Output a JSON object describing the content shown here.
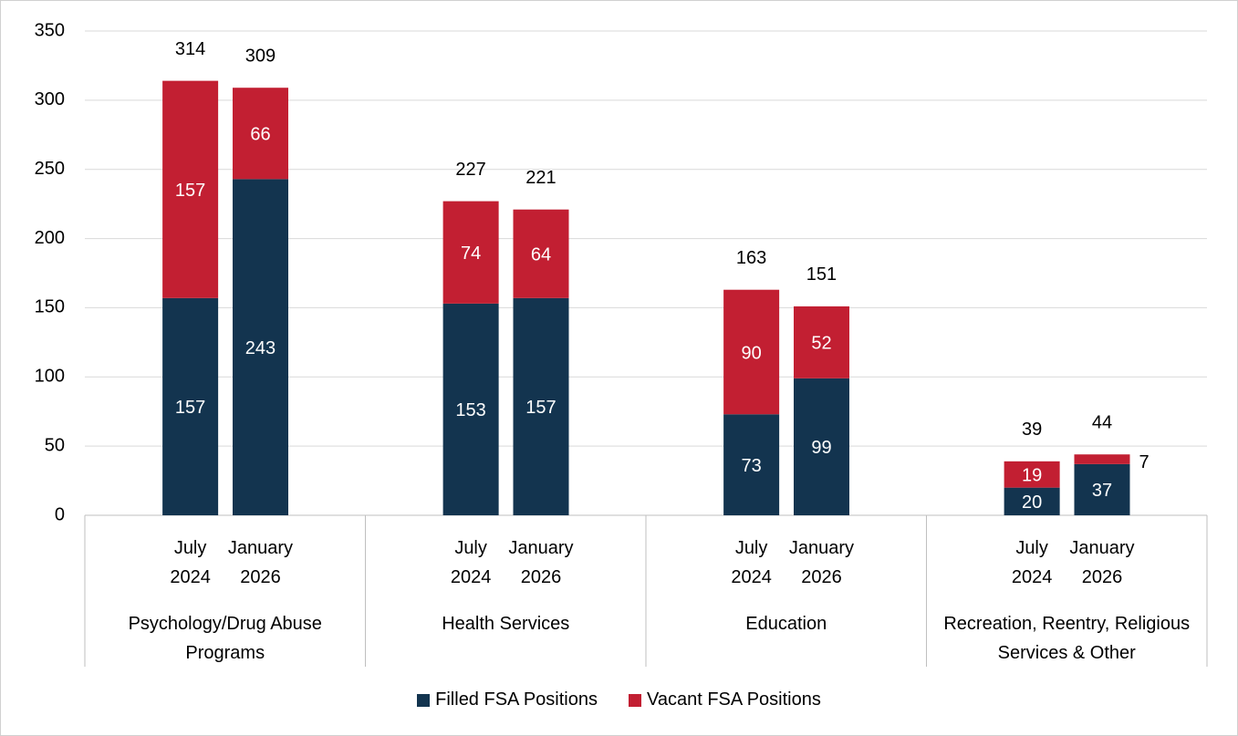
{
  "chart_data": {
    "type": "bar",
    "stacked": true,
    "groups": [
      "Psychology/Drug Abuse Programs",
      "Health Services",
      "Education",
      "Recreation, Reentry, Religious Services & Other"
    ],
    "categories": [
      "July 2024",
      "January 2026",
      "July 2024",
      "January 2026",
      "July 2024",
      "January 2026",
      "July 2024",
      "January 2026"
    ],
    "series": [
      {
        "name": "Filled FSA Positions",
        "color": "#13344f",
        "values": [
          157,
          243,
          153,
          157,
          73,
          99,
          20,
          37
        ]
      },
      {
        "name": "Vacant FSA Positions",
        "color": "#c21f32",
        "values": [
          157,
          66,
          74,
          64,
          90,
          52,
          19,
          7
        ]
      }
    ],
    "totals": [
      314,
      309,
      227,
      221,
      163,
      151,
      39,
      44
    ],
    "ylim": [
      0,
      350
    ],
    "yticks": [
      0,
      50,
      100,
      150,
      200,
      250,
      300,
      350
    ],
    "grid": true,
    "legend": "bottom"
  }
}
